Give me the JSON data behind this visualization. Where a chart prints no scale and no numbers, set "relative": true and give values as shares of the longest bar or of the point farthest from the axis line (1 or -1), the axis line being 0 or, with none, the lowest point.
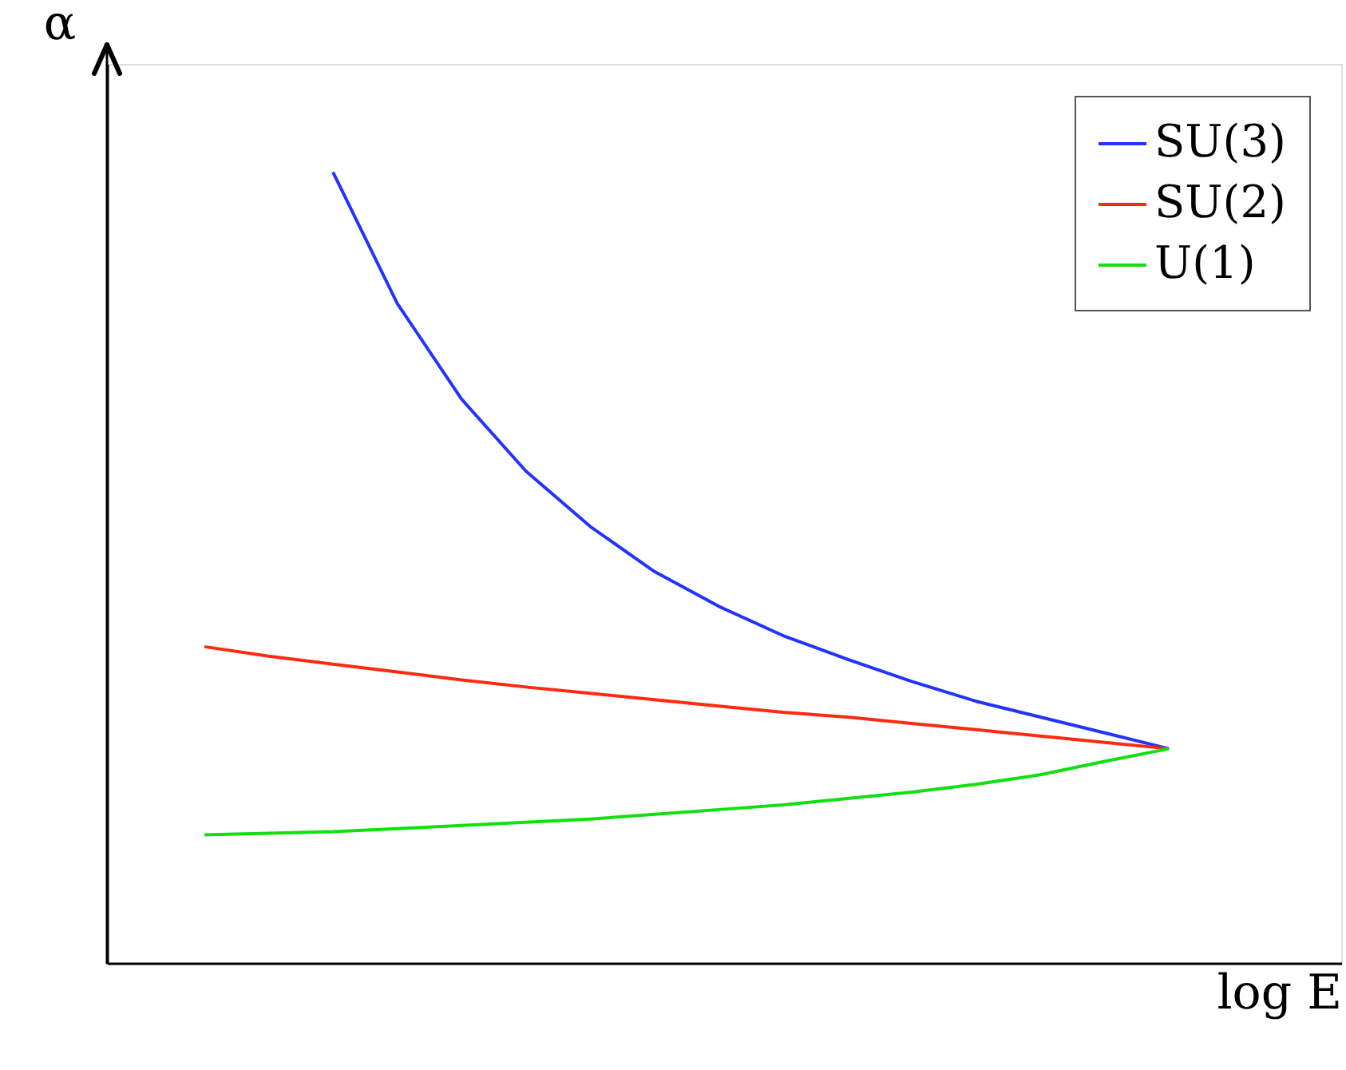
{
  "chart_data": {
    "type": "line",
    "xlabel": "log E",
    "ylabel": "α",
    "relative": true,
    "legend": "top right",
    "grid": false,
    "marker": "none",
    "line_style": "solid",
    "categories": [
      null,
      null,
      null,
      null,
      null,
      null,
      null,
      null,
      null,
      null,
      null,
      null,
      null,
      null,
      null,
      null
    ],
    "series": [
      {
        "name": "SU(3)",
        "color": "#2233ff",
        "values": [
          null,
          null,
          1.0,
          0.834,
          0.713,
          0.622,
          0.552,
          0.495,
          0.451,
          0.414,
          0.384,
          0.356,
          0.331,
          0.311,
          0.291,
          0.271
        ]
      },
      {
        "name": "SU(2)",
        "color": "#ff2a10",
        "values": [
          0.4,
          0.388,
          0.378,
          0.368,
          0.358,
          0.349,
          0.341,
          0.333,
          0.325,
          0.317,
          0.311,
          0.303,
          0.295,
          0.287,
          0.279,
          0.271
        ]
      },
      {
        "name": "U(1)",
        "color": "#10e010",
        "values": [
          0.162,
          0.164,
          0.166,
          0.17,
          0.174,
          0.178,
          0.182,
          0.188,
          0.194,
          0.2,
          0.208,
          0.216,
          0.226,
          0.238,
          0.255,
          0.271
        ]
      }
    ]
  }
}
